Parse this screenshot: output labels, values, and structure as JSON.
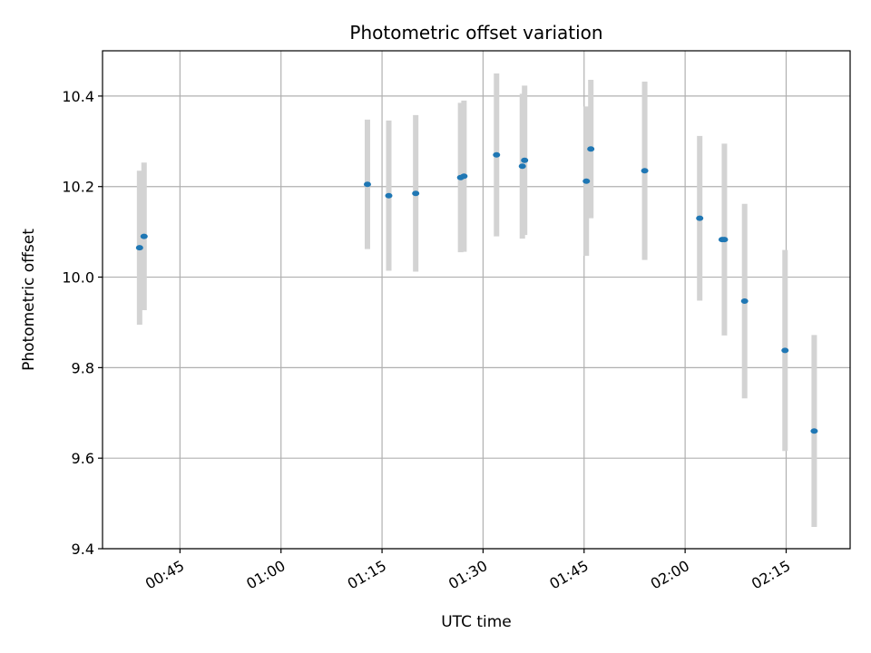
{
  "chart_data": {
    "type": "scatter",
    "title": "Photometric offset variation",
    "xlabel": "UTC time",
    "ylabel": "Photometric offset",
    "x_tick_labels": [
      "00:45",
      "01:00",
      "01:15",
      "01:30",
      "01:45",
      "02:00",
      "02:15"
    ],
    "y_tick_labels": [
      "9.4",
      "9.6",
      "9.8",
      "10.0",
      "10.2",
      "10.4"
    ],
    "xlim": [
      "00:33:30",
      "02:24:30"
    ],
    "ylim": [
      9.4,
      10.5
    ],
    "grid": true,
    "colors": {
      "point": "#1f77b4",
      "errorbar": "#d3d3d3",
      "grid": "#b0b0b0"
    },
    "series": [
      {
        "points": [
          {
            "time": "00:39:00",
            "y": 10.065,
            "err": 0.17
          },
          {
            "time": "00:39:40",
            "y": 10.09,
            "err": 0.163
          },
          {
            "time": "01:12:50",
            "y": 10.205,
            "err": 0.143
          },
          {
            "time": "01:16:00",
            "y": 10.18,
            "err": 0.166
          },
          {
            "time": "01:20:00",
            "y": 10.185,
            "err": 0.173
          },
          {
            "time": "01:26:40",
            "y": 10.22,
            "err": 0.165
          },
          {
            "time": "01:27:10",
            "y": 10.223,
            "err": 0.167
          },
          {
            "time": "01:32:00",
            "y": 10.27,
            "err": 0.18
          },
          {
            "time": "01:35:50",
            "y": 10.245,
            "err": 0.16
          },
          {
            "time": "01:36:10",
            "y": 10.258,
            "err": 0.165
          },
          {
            "time": "01:45:20",
            "y": 10.212,
            "err": 0.165
          },
          {
            "time": "01:46:00",
            "y": 10.283,
            "err": 0.153
          },
          {
            "time": "01:54:00",
            "y": 10.235,
            "err": 0.197
          },
          {
            "time": "02:02:10",
            "y": 10.13,
            "err": 0.182
          },
          {
            "time": "02:05:50",
            "y": 10.083,
            "err": 0.212
          },
          {
            "time": "02:05:30",
            "y": 10.083,
            "err": 0.0
          },
          {
            "time": "02:08:50",
            "y": 9.947,
            "err": 0.215
          },
          {
            "time": "02:14:50",
            "y": 9.838,
            "err": 0.222
          },
          {
            "time": "02:19:10",
            "y": 9.66,
            "err": 0.212
          }
        ]
      }
    ]
  }
}
